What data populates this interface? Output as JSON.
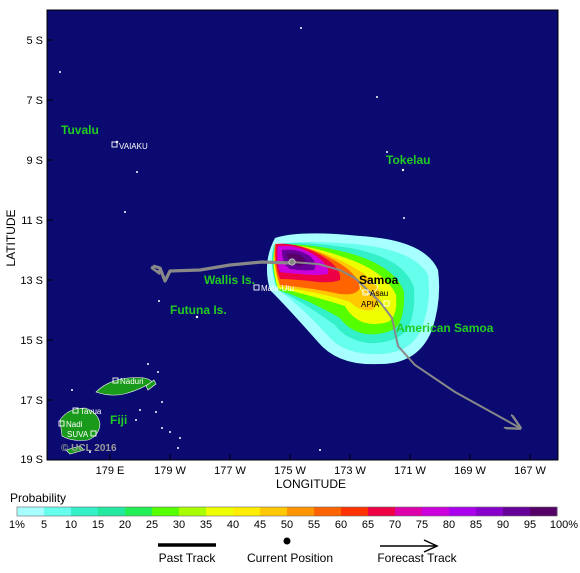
{
  "map": {
    "x_axis_title": "LONGITUDE",
    "y_axis_title": "LATITUDE",
    "lat_ticks": [
      "5 S",
      "7 S",
      "9 S",
      "11 S",
      "13 S",
      "15 S",
      "17 S",
      "19 S"
    ],
    "lon_ticks": [
      "179 E",
      "179 W",
      "177 W",
      "175 W",
      "173 W",
      "171 W",
      "169 W",
      "167 W"
    ],
    "background_color": "#0a0a70",
    "land_color": "#1a9a1a",
    "regions": [
      "Tuvalu",
      "Tokelau",
      "Wallis Is.",
      "Futuna Is.",
      "Samoa",
      "American Samoa",
      "Fiji"
    ],
    "cities": [
      "VAIAKU",
      "Mata-Utu",
      "Asau",
      "APIA",
      "Naduri",
      "Tavua",
      "Nadi",
      "SUVA"
    ],
    "copyright": "© UCL 2016"
  },
  "legend": {
    "title": "Probability",
    "labels": [
      "1%",
      "5",
      "10",
      "15",
      "20",
      "25",
      "30",
      "35",
      "40",
      "45",
      "50",
      "55",
      "60",
      "65",
      "70",
      "75",
      "80",
      "85",
      "90",
      "95",
      "100%"
    ],
    "colors": [
      "#a8ffff",
      "#66ffee",
      "#33f0c8",
      "#22e8a0",
      "#22ee55",
      "#55ff00",
      "#a8ff00",
      "#eeff00",
      "#ffee00",
      "#ffc800",
      "#ff9600",
      "#ff6400",
      "#ff3200",
      "#ee0044",
      "#dd00aa",
      "#cc00dd",
      "#aa00ee",
      "#8800cc",
      "#660099",
      "#550066"
    ]
  },
  "key": {
    "past_track": "Past Track",
    "current_position": "Current Position",
    "forecast_track": "Forecast Track"
  }
}
